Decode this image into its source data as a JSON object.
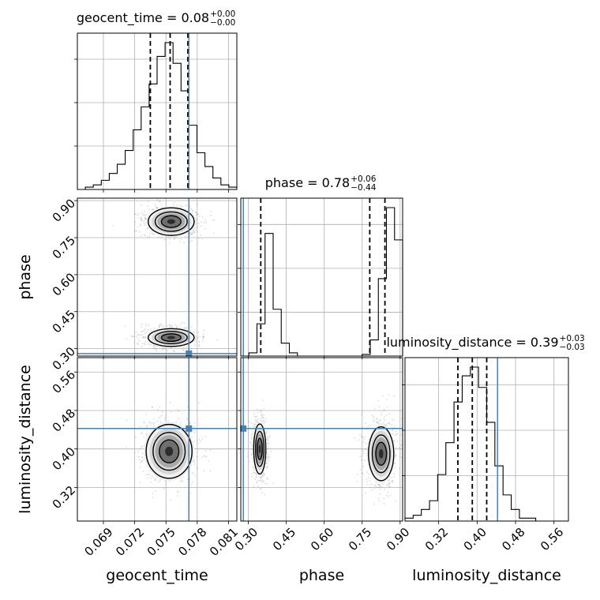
{
  "chart_data": {
    "type": "corner",
    "parameters": [
      "geocent_time",
      "phase",
      "luminosity_distance"
    ],
    "truths": [
      0.0772,
      0.28,
      0.4425
    ],
    "truth_color": "#4682b4",
    "grid": true,
    "titles": [
      {
        "param": "geocent_time",
        "name": "geocent_time",
        "value": "0.08",
        "plus": "+0.00",
        "minus": "−0.00"
      },
      {
        "param": "phase",
        "name": "phase",
        "value": "0.78",
        "plus": "+0.06",
        "minus": "−0.44"
      },
      {
        "param": "luminosity_distance",
        "name": "luminosity_distance",
        "value": "0.39",
        "plus": "+0.03",
        "minus": "−0.03"
      }
    ],
    "axes": {
      "geocent_time": {
        "label": "geocent_time",
        "range": [
          0.0665,
          0.0818
        ],
        "ticks": [
          0.069,
          0.072,
          0.075,
          0.078,
          0.081
        ],
        "tick_labels": [
          "0.069",
          "0.072",
          "0.075",
          "0.078",
          "0.081"
        ]
      },
      "phase": {
        "label": "phase",
        "range": [
          0.27,
          0.91
        ],
        "ticks": [
          0.3,
          0.45,
          0.6,
          0.75,
          0.9
        ],
        "tick_labels": [
          "0.30",
          "0.45",
          "0.60",
          "0.75",
          "0.90"
        ]
      },
      "luminosity_distance": {
        "label": "luminosity_distance",
        "range": [
          0.25,
          0.59
        ],
        "ticks": [
          0.32,
          0.4,
          0.48,
          0.56
        ],
        "tick_labels": [
          "0.32",
          "0.40",
          "0.48",
          "0.56"
        ]
      }
    },
    "histograms": [
      {
        "param": "geocent_time",
        "edges": [
          0.0665,
          0.067265,
          0.06803,
          0.068795,
          0.06956,
          0.070325,
          0.07109,
          0.071855,
          0.07262,
          0.073385,
          0.07415,
          0.074915,
          0.07568,
          0.076445,
          0.07721,
          0.077975,
          0.07874,
          0.079505,
          0.08027,
          0.081035,
          0.0818
        ],
        "counts": [
          0,
          1,
          2,
          4,
          7,
          11,
          17,
          26,
          36,
          46,
          58,
          64,
          55,
          43,
          28,
          16,
          10,
          5,
          2,
          1
        ],
        "quantiles": [
          0.0735,
          0.0754,
          0.0771
        ]
      },
      {
        "param": "phase",
        "edges": [
          0.27,
          0.302,
          0.334,
          0.366,
          0.398,
          0.43,
          0.462,
          0.494,
          0.526,
          0.558,
          0.59,
          0.622,
          0.654,
          0.686,
          0.718,
          0.75,
          0.782,
          0.814,
          0.846,
          0.878,
          0.91
        ],
        "counts": [
          0,
          2,
          20,
          76,
          29,
          8,
          2,
          0,
          0,
          0,
          0,
          0,
          0,
          0,
          0,
          1,
          10,
          48,
          92,
          72
        ],
        "quantiles": [
          0.349,
          0.78,
          0.84
        ]
      },
      {
        "param": "luminosity_distance",
        "edges": [
          0.25,
          0.267,
          0.284,
          0.301,
          0.318,
          0.335,
          0.352,
          0.369,
          0.386,
          0.403,
          0.42,
          0.437,
          0.454,
          0.471,
          0.488,
          0.505,
          0.522,
          0.539,
          0.556,
          0.573,
          0.59
        ],
        "counts": [
          1,
          2,
          4,
          7,
          16,
          27,
          41,
          50,
          53,
          46,
          34,
          19,
          9,
          4,
          1,
          1,
          0,
          0,
          0,
          0
        ],
        "quantiles": [
          0.36,
          0.39,
          0.42
        ]
      }
    ],
    "contours": [
      {
        "x": "geocent_time",
        "y": "phase",
        "blobs": [
          {
            "cx": 0.0755,
            "cy": 0.815,
            "sx": 0.0011,
            "sy": 0.028
          },
          {
            "cx": 0.0755,
            "cy": 0.345,
            "sx": 0.0011,
            "sy": 0.018
          }
        ]
      },
      {
        "x": "geocent_time",
        "y": "luminosity_distance",
        "blobs": [
          {
            "cx": 0.0753,
            "cy": 0.395,
            "sx": 0.0011,
            "sy": 0.028
          }
        ]
      },
      {
        "x": "phase",
        "y": "luminosity_distance",
        "blobs": [
          {
            "cx": 0.345,
            "cy": 0.4,
            "sx": 0.012,
            "sy": 0.026
          },
          {
            "cx": 0.825,
            "cy": 0.39,
            "sx": 0.025,
            "sy": 0.028
          }
        ]
      }
    ]
  }
}
